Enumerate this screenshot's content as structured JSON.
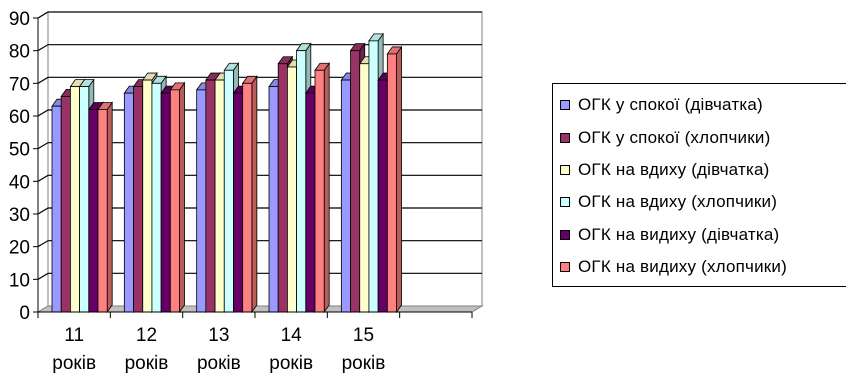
{
  "chart_data": {
    "type": "bar",
    "categories": [
      [
        "11",
        "років"
      ],
      [
        "12",
        "років"
      ],
      [
        "13",
        "років"
      ],
      [
        "14",
        "років"
      ],
      [
        "15",
        "років"
      ]
    ],
    "series": [
      {
        "name": "ОГК у спокої (дівчатка)",
        "color": "#9999ff",
        "values": [
          63,
          67,
          68,
          69,
          71
        ]
      },
      {
        "name": "ОГК у спокої (хлопчики)",
        "color": "#993366",
        "values": [
          66,
          69,
          71,
          76,
          80
        ]
      },
      {
        "name": "ОГК на вдиху (дівчатка)",
        "color": "#ffffcc",
        "values": [
          69,
          71,
          71,
          75,
          76
        ]
      },
      {
        "name": "ОГК на вдиху (хлопчики)",
        "color": "#ccffff",
        "values": [
          69,
          70,
          74,
          80,
          83
        ]
      },
      {
        "name": "ОГК на видиху (дівчатка)",
        "color": "#660066",
        "values": [
          62,
          67,
          67,
          67,
          71
        ]
      },
      {
        "name": "ОГК на видиху (хлопчики)",
        "color": "#ff8080",
        "values": [
          62,
          68,
          70,
          74,
          79
        ]
      }
    ],
    "ylim": [
      0,
      90
    ],
    "yticks": [
      0,
      10,
      20,
      30,
      40,
      50,
      60,
      70,
      80,
      90
    ],
    "grid": true,
    "legend": "right",
    "three_d": true
  }
}
